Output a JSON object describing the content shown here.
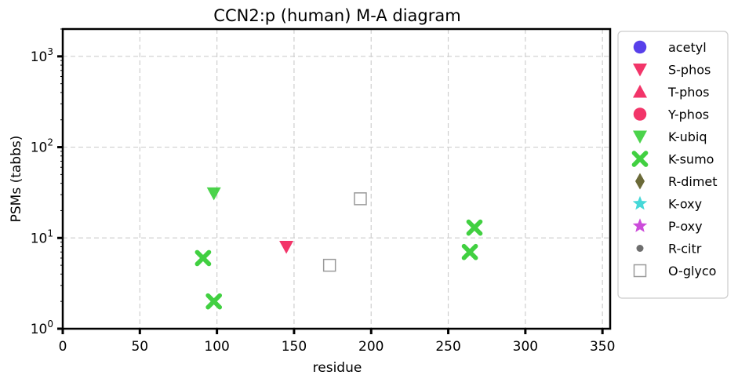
{
  "chart_data": {
    "type": "scatter",
    "title": "CCN2:p (human) M-A diagram",
    "xlabel": "residue",
    "ylabel": "PSMs (tabbs)",
    "xlim": [
      0,
      355
    ],
    "ylim": [
      1,
      2000
    ],
    "yscale": "log",
    "x_ticks": [
      0,
      50,
      100,
      150,
      200,
      250,
      300,
      350
    ],
    "x_tick_labels": [
      "0",
      "50",
      "100",
      "150",
      "200",
      "250",
      "300",
      "350"
    ],
    "y_ticks": [
      1,
      10,
      100,
      1000
    ],
    "y_tick_labels": [
      {
        "base": "10",
        "exp": "0"
      },
      {
        "base": "10",
        "exp": "1"
      },
      {
        "base": "10",
        "exp": "2"
      },
      {
        "base": "10",
        "exp": "3"
      }
    ],
    "grid": true,
    "legend_position": "right",
    "series": [
      {
        "name": "acetyl",
        "marker": "circle",
        "color": "#3b1ee6",
        "points": []
      },
      {
        "name": "S-phos",
        "marker": "triangle-down",
        "color": "#f0124f",
        "points": [
          {
            "x": 145,
            "y": 8
          }
        ]
      },
      {
        "name": "T-phos",
        "marker": "triangle-up",
        "color": "#f0124f",
        "points": []
      },
      {
        "name": "Y-phos",
        "marker": "circle",
        "color": "#f0124f",
        "points": []
      },
      {
        "name": "K-ubiq",
        "marker": "triangle-down",
        "color": "#2ccb2c",
        "points": [
          {
            "x": 98,
            "y": 31
          }
        ]
      },
      {
        "name": "K-sumo",
        "marker": "x-cross",
        "color": "#2ccb2c",
        "points": [
          {
            "x": 91,
            "y": 6
          },
          {
            "x": 98,
            "y": 2
          },
          {
            "x": 264,
            "y": 7
          },
          {
            "x": 267,
            "y": 13
          }
        ]
      },
      {
        "name": "R-dimet",
        "marker": "diamond",
        "color": "#5b5a22",
        "points": []
      },
      {
        "name": "K-oxy",
        "marker": "star",
        "color": "#26d1d1",
        "points": []
      },
      {
        "name": "P-oxy",
        "marker": "star",
        "color": "#c32dd4",
        "points": []
      },
      {
        "name": "R-citr",
        "marker": "small-circle",
        "color": "#555555",
        "points": []
      },
      {
        "name": "O-glyco",
        "marker": "open-square",
        "color": "#9a9a9a",
        "points": [
          {
            "x": 173,
            "y": 5
          },
          {
            "x": 193,
            "y": 27
          }
        ]
      }
    ]
  }
}
